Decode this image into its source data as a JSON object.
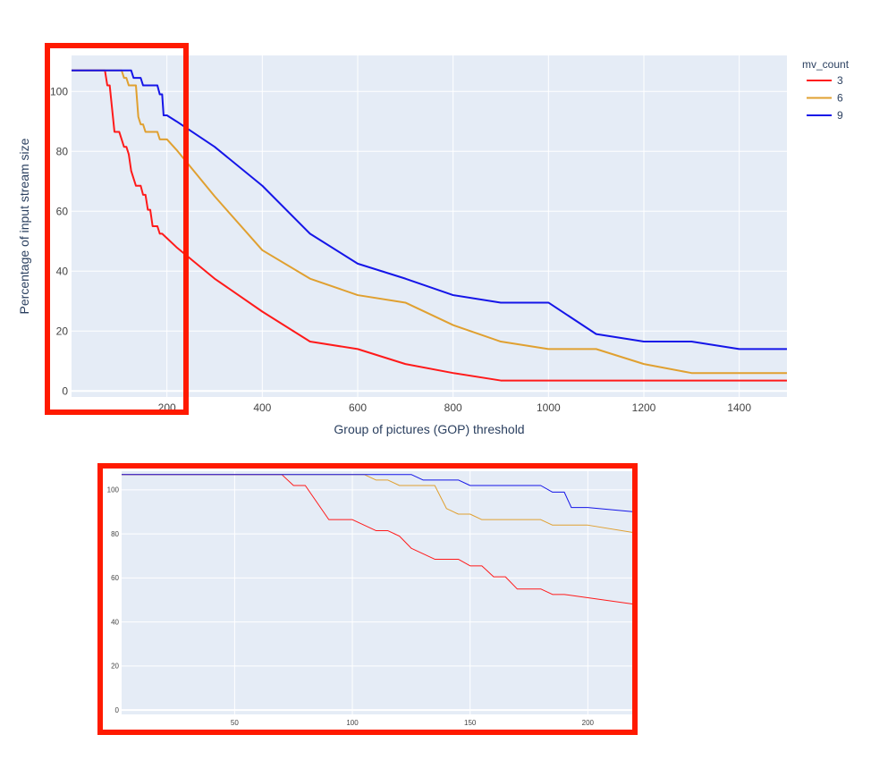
{
  "chart_data": [
    {
      "type": "line",
      "xlabel": "Group of pictures (GOP) threshold",
      "ylabel": "Percentage of input stream size",
      "xlim": [
        0,
        1500
      ],
      "ylim": [
        -2,
        112
      ],
      "x_ticks": [
        200,
        400,
        600,
        800,
        1000,
        1200,
        1400
      ],
      "y_ticks": [
        0,
        20,
        40,
        60,
        80,
        100
      ],
      "grid": true,
      "legend": {
        "title": "mv_count",
        "position": "top-right"
      },
      "series": [
        {
          "name": "3",
          "color": "#ff1a1a",
          "points": [
            [
              0,
              107
            ],
            [
              70,
              107
            ],
            [
              75,
              102
            ],
            [
              80,
              102
            ],
            [
              90,
              86.5
            ],
            [
              100,
              86.5
            ],
            [
              105,
              84
            ],
            [
              110,
              81.5
            ],
            [
              115,
              81.5
            ],
            [
              120,
              79
            ],
            [
              125,
              73.5
            ],
            [
              130,
              71
            ],
            [
              135,
              68.5
            ],
            [
              145,
              68.5
            ],
            [
              150,
              65.5
            ],
            [
              155,
              65.5
            ],
            [
              160,
              60.5
            ],
            [
              165,
              60.5
            ],
            [
              170,
              55
            ],
            [
              180,
              55
            ],
            [
              185,
              52.5
            ],
            [
              190,
              52.5
            ],
            [
              200,
              51
            ],
            [
              220,
              48
            ],
            [
              300,
              37.5
            ],
            [
              400,
              26.5
            ],
            [
              500,
              16.5
            ],
            [
              600,
              14
            ],
            [
              700,
              9
            ],
            [
              800,
              6
            ],
            [
              900,
              3.5
            ],
            [
              1000,
              3.5
            ],
            [
              1100,
              3.5
            ],
            [
              1200,
              3.5
            ],
            [
              1300,
              3.5
            ],
            [
              1400,
              3.5
            ],
            [
              1500,
              3.5
            ]
          ]
        },
        {
          "name": "6",
          "color": "#e0a030",
          "points": [
            [
              0,
              107
            ],
            [
              105,
              107
            ],
            [
              110,
              104.5
            ],
            [
              115,
              104.5
            ],
            [
              120,
              102
            ],
            [
              135,
              102
            ],
            [
              140,
              91.5
            ],
            [
              145,
              89
            ],
            [
              150,
              89
            ],
            [
              155,
              86.5
            ],
            [
              180,
              86.5
            ],
            [
              185,
              84
            ],
            [
              200,
              84
            ],
            [
              220,
              80.5
            ],
            [
              300,
              65
            ],
            [
              400,
              47
            ],
            [
              500,
              37.5
            ],
            [
              600,
              32
            ],
            [
              700,
              29.5
            ],
            [
              800,
              22
            ],
            [
              900,
              16.5
            ],
            [
              1000,
              14
            ],
            [
              1100,
              14
            ],
            [
              1200,
              9
            ],
            [
              1300,
              6
            ],
            [
              1400,
              6
            ],
            [
              1500,
              6
            ]
          ]
        },
        {
          "name": "9",
          "color": "#1515e8",
          "points": [
            [
              0,
              107
            ],
            [
              125,
              107
            ],
            [
              130,
              104.5
            ],
            [
              145,
              104.5
            ],
            [
              150,
              102
            ],
            [
              180,
              102
            ],
            [
              185,
              99
            ],
            [
              190,
              99
            ],
            [
              193,
              92
            ],
            [
              200,
              92
            ],
            [
              220,
              90
            ],
            [
              300,
              81.5
            ],
            [
              400,
              68.5
            ],
            [
              500,
              52.5
            ],
            [
              600,
              42.5
            ],
            [
              700,
              37.5
            ],
            [
              800,
              32
            ],
            [
              900,
              29.5
            ],
            [
              1000,
              29.5
            ],
            [
              1100,
              19
            ],
            [
              1200,
              16.5
            ],
            [
              1300,
              16.5
            ],
            [
              1400,
              14
            ],
            [
              1500,
              14
            ]
          ]
        }
      ]
    },
    {
      "type": "line",
      "xlabel": "",
      "ylabel": "",
      "xlim": [
        2,
        220
      ],
      "ylim": [
        -2,
        108.5
      ],
      "x_ticks": [
        50,
        100,
        150,
        200
      ],
      "y_ticks": [
        0,
        20,
        40,
        60,
        80,
        100
      ],
      "grid": true,
      "series": [
        {
          "name": "3",
          "color": "#ff1a1a",
          "points": [
            [
              0,
              107
            ],
            [
              70,
              107
            ],
            [
              75,
              102
            ],
            [
              80,
              102
            ],
            [
              90,
              86.5
            ],
            [
              100,
              86.5
            ],
            [
              105,
              84
            ],
            [
              110,
              81.5
            ],
            [
              115,
              81.5
            ],
            [
              120,
              79
            ],
            [
              125,
              73.5
            ],
            [
              130,
              71
            ],
            [
              135,
              68.5
            ],
            [
              145,
              68.5
            ],
            [
              150,
              65.5
            ],
            [
              155,
              65.5
            ],
            [
              160,
              60.5
            ],
            [
              165,
              60.5
            ],
            [
              170,
              55
            ],
            [
              180,
              55
            ],
            [
              185,
              52.5
            ],
            [
              190,
              52.5
            ],
            [
              200,
              51
            ],
            [
              220,
              48
            ]
          ]
        },
        {
          "name": "6",
          "color": "#e0a030",
          "points": [
            [
              0,
              107
            ],
            [
              105,
              107
            ],
            [
              110,
              104.5
            ],
            [
              115,
              104.5
            ],
            [
              120,
              102
            ],
            [
              135,
              102
            ],
            [
              140,
              91.5
            ],
            [
              145,
              89
            ],
            [
              150,
              89
            ],
            [
              155,
              86.5
            ],
            [
              180,
              86.5
            ],
            [
              185,
              84
            ],
            [
              200,
              84
            ],
            [
              220,
              80.5
            ]
          ]
        },
        {
          "name": "9",
          "color": "#1515e8",
          "points": [
            [
              0,
              107
            ],
            [
              125,
              107
            ],
            [
              130,
              104.5
            ],
            [
              145,
              104.5
            ],
            [
              150,
              102
            ],
            [
              180,
              102
            ],
            [
              185,
              99
            ],
            [
              190,
              99
            ],
            [
              193,
              92
            ],
            [
              200,
              92
            ],
            [
              220,
              90
            ]
          ]
        }
      ]
    }
  ],
  "highlight_color": "#ff1a00"
}
